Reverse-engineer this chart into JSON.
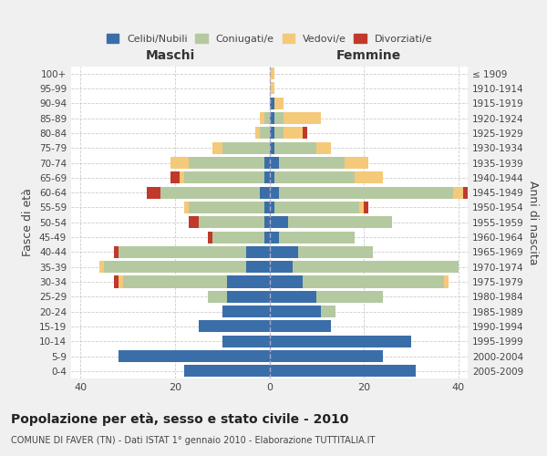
{
  "age_groups": [
    "100+",
    "95-99",
    "90-94",
    "85-89",
    "80-84",
    "75-79",
    "70-74",
    "65-69",
    "60-64",
    "55-59",
    "50-54",
    "45-49",
    "40-44",
    "35-39",
    "30-34",
    "25-29",
    "20-24",
    "15-19",
    "10-14",
    "5-9",
    "0-4"
  ],
  "birth_years": [
    "≤ 1909",
    "1910-1914",
    "1915-1919",
    "1920-1924",
    "1925-1929",
    "1930-1934",
    "1935-1939",
    "1940-1944",
    "1945-1949",
    "1950-1954",
    "1955-1959",
    "1960-1964",
    "1965-1969",
    "1970-1974",
    "1975-1979",
    "1980-1984",
    "1985-1989",
    "1990-1994",
    "1995-1999",
    "2000-2004",
    "2005-2009"
  ],
  "male": {
    "celibi": [
      0,
      0,
      0,
      0,
      0,
      0,
      1,
      1,
      2,
      1,
      1,
      1,
      5,
      5,
      9,
      9,
      10,
      15,
      10,
      32,
      18
    ],
    "coniugati": [
      0,
      0,
      0,
      1,
      2,
      10,
      16,
      17,
      21,
      16,
      14,
      11,
      27,
      30,
      22,
      4,
      0,
      0,
      0,
      0,
      0
    ],
    "vedovi": [
      0,
      0,
      0,
      1,
      1,
      2,
      4,
      1,
      0,
      1,
      0,
      0,
      0,
      1,
      1,
      0,
      0,
      0,
      0,
      0,
      0
    ],
    "divorziati": [
      0,
      0,
      0,
      0,
      0,
      0,
      0,
      2,
      3,
      0,
      2,
      1,
      1,
      0,
      1,
      0,
      0,
      0,
      0,
      0,
      0
    ]
  },
  "female": {
    "nubili": [
      0,
      0,
      1,
      1,
      1,
      1,
      2,
      1,
      2,
      1,
      4,
      2,
      6,
      5,
      7,
      10,
      11,
      13,
      30,
      24,
      31
    ],
    "coniugate": [
      0,
      0,
      0,
      2,
      2,
      9,
      14,
      17,
      37,
      18,
      22,
      16,
      16,
      35,
      30,
      14,
      3,
      0,
      0,
      0,
      0
    ],
    "vedove": [
      1,
      1,
      2,
      8,
      4,
      3,
      5,
      6,
      2,
      1,
      0,
      0,
      0,
      0,
      1,
      0,
      0,
      0,
      0,
      0,
      0
    ],
    "divorziate": [
      0,
      0,
      0,
      0,
      1,
      0,
      0,
      0,
      1,
      1,
      0,
      0,
      0,
      0,
      0,
      0,
      0,
      0,
      0,
      0,
      0
    ]
  },
  "colors": {
    "celibi": "#3a6ea8",
    "coniugati": "#b5c9a0",
    "vedovi": "#f5c97a",
    "divorziati": "#c0392b"
  },
  "xlim": 42,
  "title": "Popolazione per età, sesso e stato civile - 2010",
  "subtitle": "COMUNE DI FAVER (TN) - Dati ISTAT 1° gennaio 2010 - Elaborazione TUTTITALIA.IT",
  "ylabel_left": "Fasce di età",
  "ylabel_right": "Anni di nascita",
  "xlabel_left": "Maschi",
  "xlabel_right": "Femmine",
  "bg_color": "#f0f0f0",
  "plot_bg_color": "#ffffff"
}
